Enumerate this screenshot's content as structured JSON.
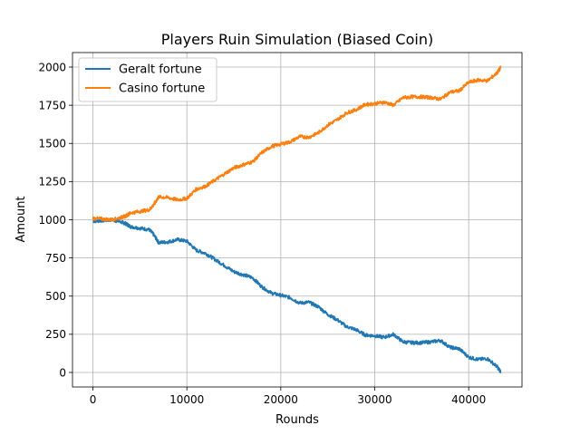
{
  "chart_data": {
    "type": "line",
    "title": "Players Ruin Simulation (Biased Coin)",
    "xlabel": "Rounds",
    "ylabel": "Amount",
    "xlim": [
      -2175,
      45675
    ],
    "ylim": [
      -95,
      2095
    ],
    "xticks": [
      0,
      10000,
      20000,
      30000,
      40000
    ],
    "yticks": [
      0,
      250,
      500,
      750,
      1000,
      1250,
      1500,
      1750,
      2000
    ],
    "grid": true,
    "legend_position": "top-left",
    "series": [
      {
        "name": "Geralt fortune",
        "color": "#1f77b4",
        "x": [
          0,
          1000,
          2000,
          3000,
          3500,
          4000,
          5000,
          6000,
          6500,
          7000,
          8000,
          9000,
          10000,
          11000,
          12000,
          13000,
          14000,
          15000,
          16000,
          17000,
          18000,
          19000,
          20000,
          21000,
          22000,
          23000,
          24000,
          25000,
          26000,
          27000,
          28000,
          29000,
          30000,
          31000,
          32000,
          33000,
          34000,
          35000,
          36000,
          37000,
          38000,
          39000,
          40000,
          41000,
          42000,
          43000,
          43400
        ],
        "y": [
          990,
          995,
          1000,
          985,
          975,
          955,
          945,
          935,
          900,
          850,
          855,
          870,
          860,
          800,
          780,
          740,
          700,
          660,
          640,
          620,
          560,
          520,
          505,
          490,
          455,
          460,
          430,
          380,
          345,
          300,
          280,
          245,
          240,
          230,
          250,
          200,
          195,
          195,
          200,
          210,
          165,
          155,
          100,
          85,
          90,
          40,
          5
        ]
      },
      {
        "name": "Casino fortune",
        "color": "#ff7f0e",
        "x": [
          0,
          1000,
          2000,
          3000,
          3500,
          4000,
          5000,
          6000,
          6500,
          7000,
          8000,
          9000,
          10000,
          11000,
          12000,
          13000,
          14000,
          15000,
          16000,
          17000,
          18000,
          19000,
          20000,
          21000,
          22000,
          23000,
          24000,
          25000,
          26000,
          27000,
          28000,
          29000,
          30000,
          31000,
          32000,
          33000,
          34000,
          35000,
          36000,
          37000,
          38000,
          39000,
          40000,
          41000,
          42000,
          43000,
          43400
        ],
        "y": [
          1010,
          1005,
          1000,
          1015,
          1025,
          1045,
          1055,
          1065,
          1100,
          1150,
          1145,
          1130,
          1140,
          1200,
          1220,
          1260,
          1300,
          1340,
          1360,
          1380,
          1440,
          1480,
          1495,
          1510,
          1545,
          1540,
          1570,
          1620,
          1655,
          1700,
          1720,
          1755,
          1760,
          1770,
          1750,
          1800,
          1805,
          1805,
          1800,
          1790,
          1835,
          1845,
          1900,
          1915,
          1910,
          1960,
          1995
        ]
      }
    ]
  }
}
